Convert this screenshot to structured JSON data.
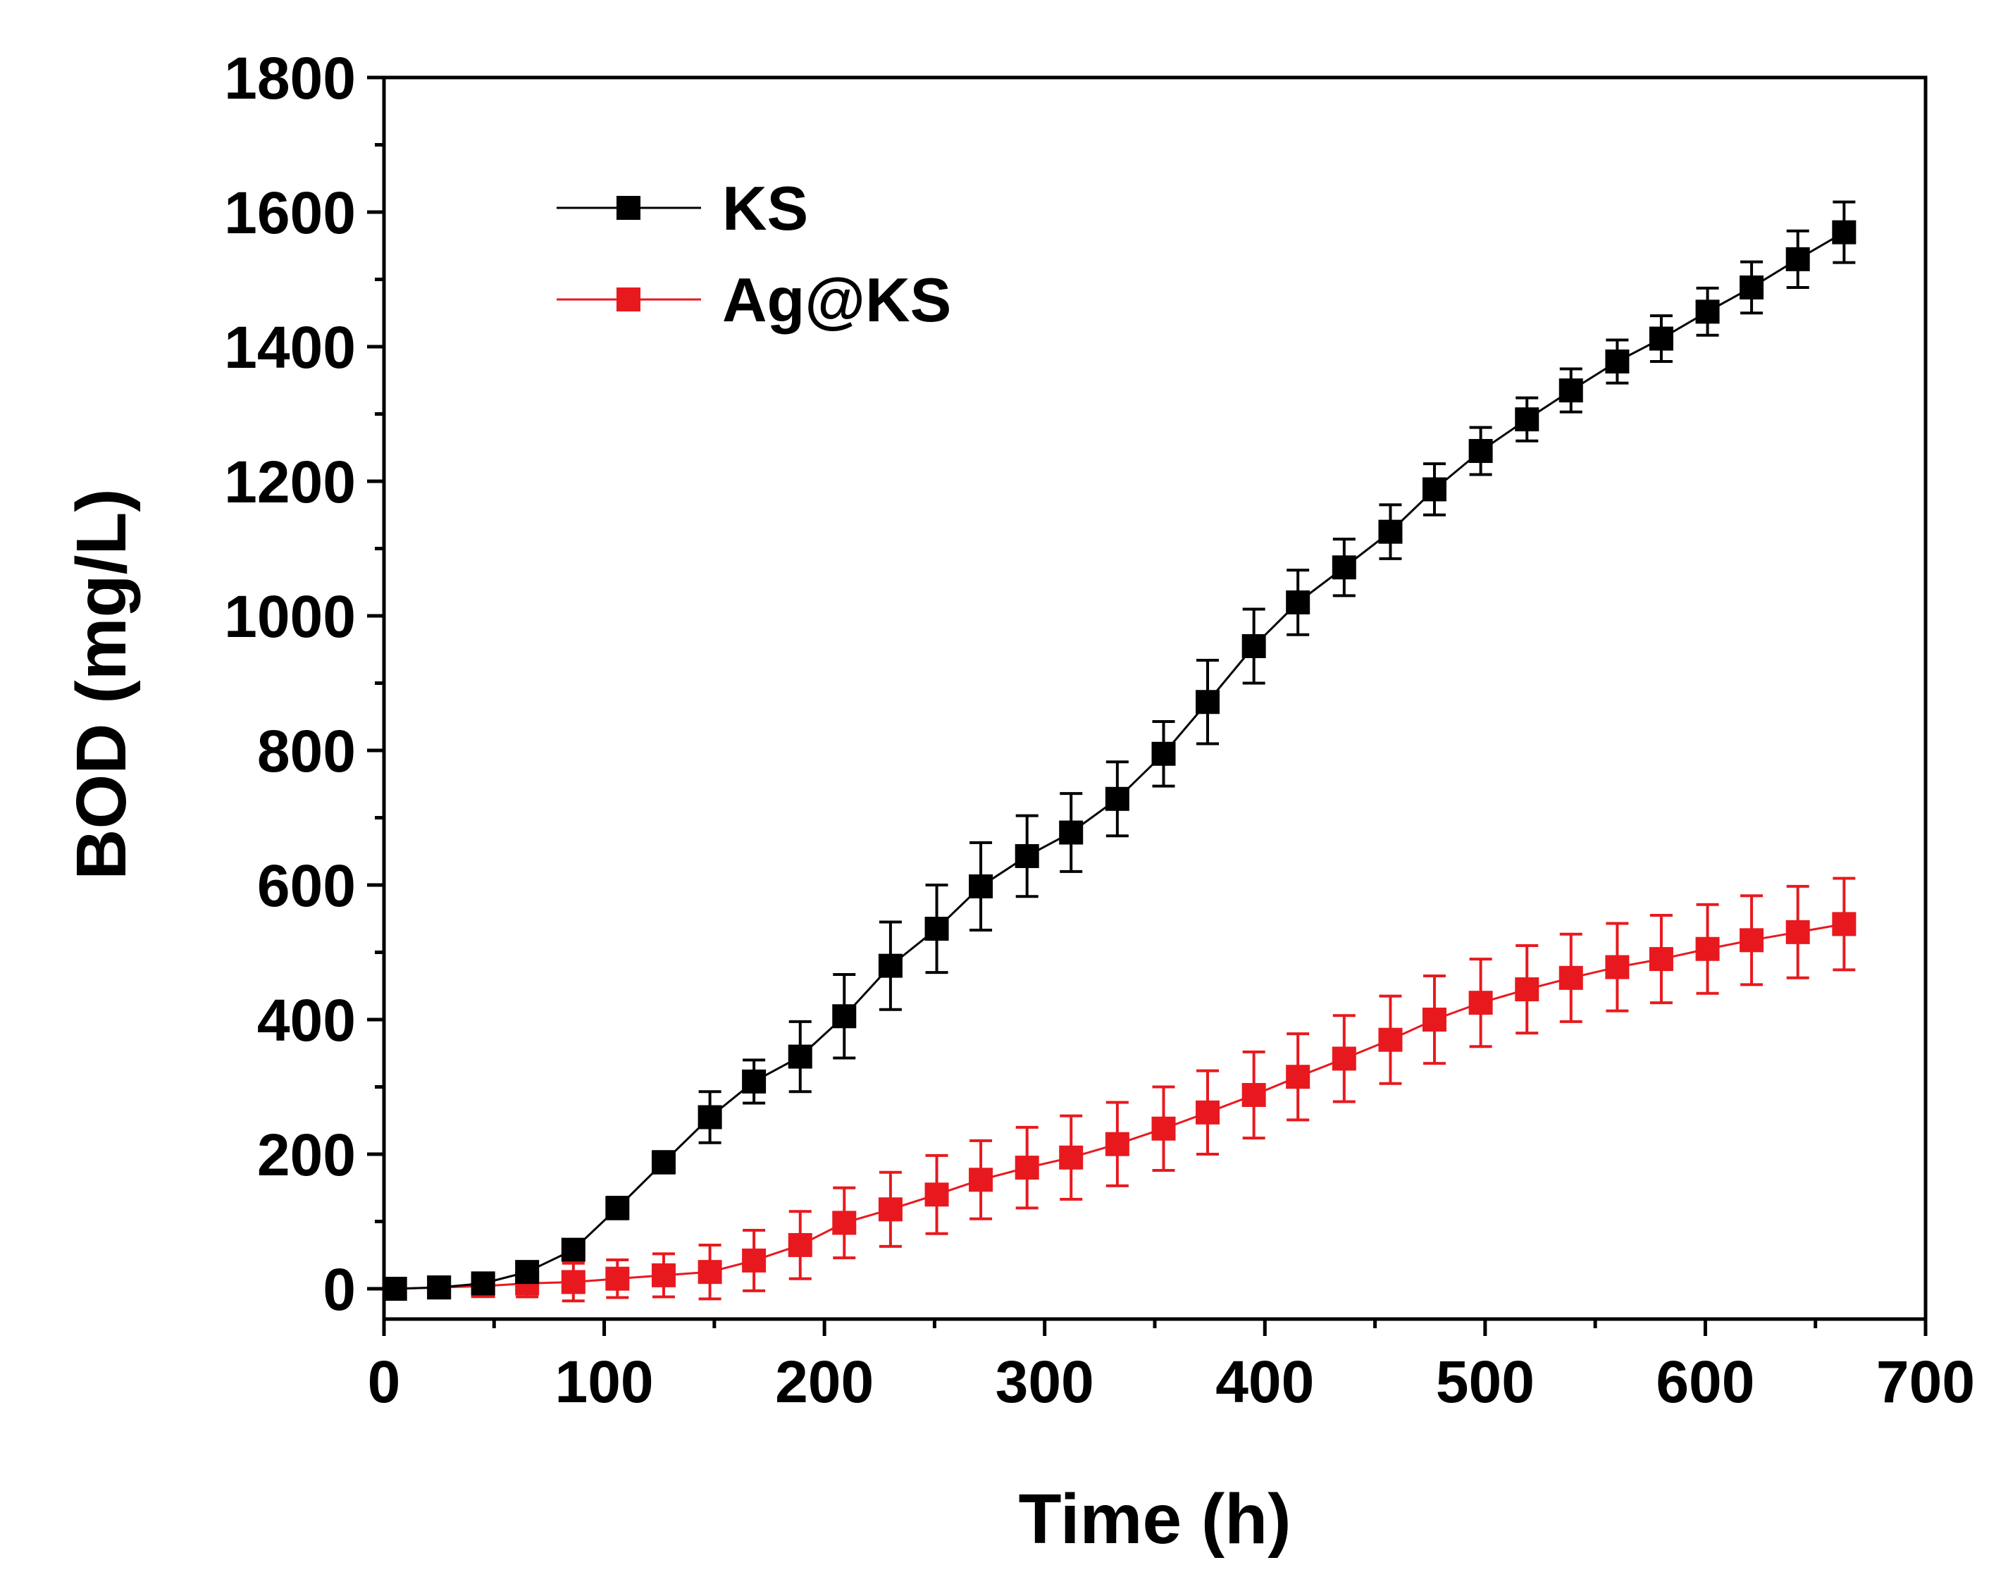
{
  "chart_data": {
    "type": "line",
    "title": "",
    "xlabel": "Time (h)",
    "ylabel": "BOD (mg/L)",
    "xlim": [
      0,
      700
    ],
    "ylim": [
      -45,
      1800
    ],
    "xticks": [
      0,
      100,
      200,
      300,
      400,
      500,
      600,
      700
    ],
    "xtick_labels": [
      "0",
      "100",
      "200",
      "300",
      "400",
      "500",
      "600",
      "700"
    ],
    "yticks": [
      0,
      200,
      400,
      600,
      800,
      1000,
      1200,
      1400,
      1600,
      1800
    ],
    "ytick_labels": [
      "0",
      "200",
      "400",
      "600",
      "800",
      "1000",
      "1200",
      "1400",
      "1600",
      "1800"
    ],
    "grid": false,
    "legend_position": "top-left",
    "x": [
      5,
      25,
      45,
      65,
      86,
      106,
      127,
      148,
      168,
      189,
      209,
      230,
      251,
      271,
      292,
      312,
      333,
      354,
      374,
      395,
      415,
      436,
      457,
      477,
      498,
      519,
      539,
      560,
      580,
      601,
      621,
      642,
      663
    ],
    "series": [
      {
        "name": "KS",
        "color": "#000000",
        "marker": "square",
        "values": [
          0,
          2,
          8,
          25,
          58,
          120,
          188,
          255,
          308,
          345,
          405,
          480,
          535,
          598,
          643,
          678,
          728,
          795,
          872,
          955,
          1020,
          1072,
          1125,
          1188,
          1245,
          1292,
          1335,
          1378,
          1412,
          1452,
          1488,
          1530,
          1570
        ],
        "errors": [
          5,
          5,
          5,
          8,
          12,
          16,
          16,
          38,
          32,
          52,
          62,
          65,
          65,
          65,
          60,
          58,
          55,
          48,
          62,
          55,
          48,
          42,
          40,
          38,
          35,
          32,
          32,
          32,
          34,
          35,
          38,
          42,
          45
        ]
      },
      {
        "name": "Ag@KS",
        "color": "#e8191e",
        "marker": "square",
        "values": [
          0,
          2,
          4,
          8,
          10,
          15,
          20,
          25,
          42,
          65,
          98,
          118,
          140,
          162,
          180,
          195,
          215,
          238,
          262,
          288,
          315,
          342,
          370,
          400,
          425,
          445,
          462,
          478,
          490,
          505,
          518,
          530,
          542
        ],
        "errors": [
          5,
          10,
          14,
          20,
          28,
          28,
          32,
          40,
          45,
          50,
          52,
          55,
          58,
          58,
          60,
          62,
          62,
          62,
          62,
          64,
          64,
          64,
          65,
          65,
          65,
          65,
          65,
          65,
          65,
          66,
          66,
          68,
          68
        ]
      }
    ]
  }
}
